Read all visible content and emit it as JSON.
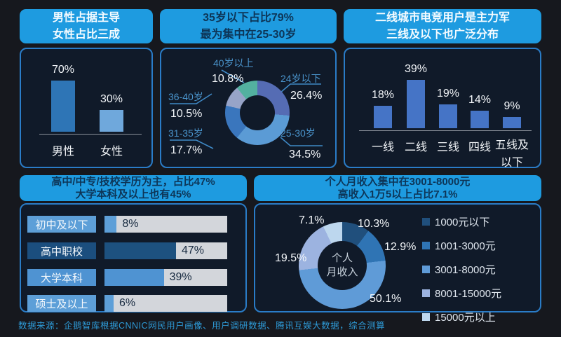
{
  "page": {
    "footer": "数据来源：企鹅智库根据CNNIC网民用户画像、用户调研数据、腾讯互娱大数据，综合测算"
  },
  "colors": {
    "page_bg": "#16181e",
    "panel_bg": "#101a29",
    "panel_border": "#2a7cc7",
    "header_bg": "#1e9be0",
    "header_dark_text": "#0d3557",
    "track_gray": "#d3d6db",
    "label_blue": "#4a94cc",
    "footer_blue": "#2e9bd8"
  },
  "chart_data": [
    {
      "id": "gender",
      "type": "bar",
      "header_lines": [
        "男性占据主导",
        "女性占比三成"
      ],
      "categories": [
        "男性",
        "女性"
      ],
      "values": [
        70,
        30
      ],
      "value_labels": [
        "70%",
        "30%"
      ],
      "bar_colors": [
        "#2e75b6",
        "#6fa8dc"
      ]
    },
    {
      "id": "age",
      "type": "donut",
      "header_lines": [
        "35岁以下占比79%",
        "最为集中在25-30岁"
      ],
      "segments": [
        {
          "label": "24岁以下",
          "value": 26.4,
          "pct": "26.4%",
          "color": "#556cb4"
        },
        {
          "label": "25-30岁",
          "value": 34.5,
          "pct": "34.5%",
          "color": "#5b9bd5"
        },
        {
          "label": "31-35岁",
          "value": 17.7,
          "pct": "17.7%",
          "color": "#3a76bd"
        },
        {
          "label": "36-40岁",
          "value": 10.5,
          "pct": "10.5%",
          "color": "#97a4c8"
        },
        {
          "label": "40岁以上",
          "value": 10.8,
          "pct": "10.8%",
          "color": "#53b1a0"
        }
      ]
    },
    {
      "id": "city",
      "type": "bar",
      "header_lines": [
        "二线城市电竞用户是主力军",
        "三线及以下也广泛分布"
      ],
      "categories": [
        "一线",
        "二线",
        "三线",
        "四线",
        "五线及以下"
      ],
      "values": [
        18,
        39,
        19,
        14,
        9
      ],
      "value_labels": [
        "18%",
        "39%",
        "19%",
        "14%",
        "9%"
      ],
      "bar_color": "#4574c6"
    },
    {
      "id": "education",
      "type": "hbar",
      "header_lines": [
        "高中/中专/技校学历为主，占比47%",
        "大学本科及以上也有45%"
      ],
      "rows": [
        {
          "label": "初中及以下",
          "value": 8,
          "pct": "8%",
          "box_color": "#5d9fd8",
          "fill_color": "#5d9fd8"
        },
        {
          "label": "高中职校",
          "value": 47,
          "pct": "47%",
          "box_color": "#1b4e7e",
          "fill_color": "#1d517f"
        },
        {
          "label": "大学本科",
          "value": 39,
          "pct": "39%",
          "box_color": "#4f93d2",
          "fill_color": "#4f93d2"
        },
        {
          "label": "硕士及以上",
          "value": 6,
          "pct": "6%",
          "box_color": "#5d9fd8",
          "fill_color": "#5d9fd8"
        }
      ]
    },
    {
      "id": "income",
      "type": "donut",
      "header_lines": [
        "个人月收入集中在3001-8000元",
        "高收入1万5以上占比7.1%"
      ],
      "center_lines": [
        "个人",
        "月收入"
      ],
      "segments": [
        {
          "label": "1000元以下",
          "value": 10.3,
          "pct": "10.3%",
          "color": "#204f7c"
        },
        {
          "label": "1001-3000元",
          "value": 12.9,
          "pct": "12.9%",
          "color": "#2f74b4"
        },
        {
          "label": "3001-8000元",
          "value": 50.1,
          "pct": "50.1%",
          "color": "#5f9bd7"
        },
        {
          "label": "8001-15000元",
          "value": 19.5,
          "pct": "19.5%",
          "color": "#9cb3e0"
        },
        {
          "label": "15000元以上",
          "value": 7.1,
          "pct": "7.1%",
          "color": "#bdd7ee"
        }
      ]
    }
  ]
}
